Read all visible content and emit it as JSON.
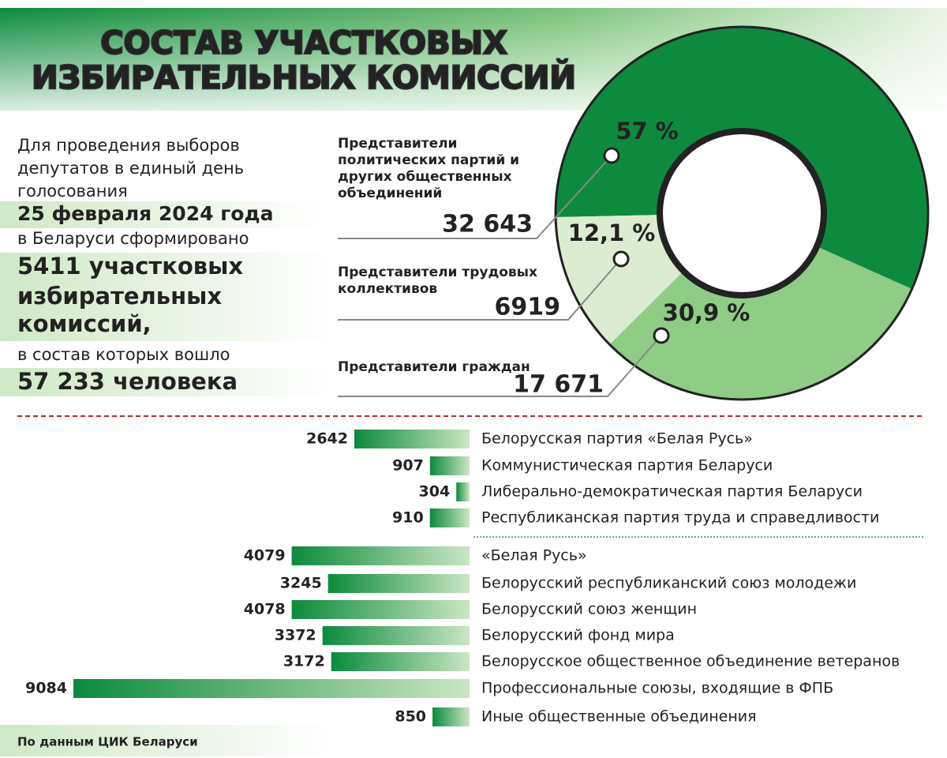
{
  "header": {
    "title_lines": [
      "СОСТАВ УЧАСТКОВЫХ",
      "ИЗБИРАТЕЛЬНЫХ КОМИССИЙ"
    ]
  },
  "intro": {
    "lines": [
      "Для проведения выборов",
      "депутатов в единый день",
      "голосования",
      "25 февраля 2024 года",
      "в Беларуси сформировано",
      "5411 участковых",
      "избирательных",
      "комиссий,",
      "в состав которых вошло",
      "57 233 человека"
    ]
  },
  "chart_data": [
    {
      "type": "pie",
      "categories": [
        "Представители политических партий и других общественных объединений",
        "Представители трудовых коллективов",
        "Представители граждан"
      ],
      "values": [
        57,
        12.1,
        30.9
      ],
      "value_labels": [
        "57 %",
        "12,1 %",
        "30,9 %"
      ],
      "counts": [
        32643,
        6919,
        17671
      ],
      "count_labels": [
        "32 643",
        "6919",
        "17 671"
      ],
      "colors": [
        "#0e8a3f",
        "#dcecd3",
        "#8fcc86"
      ]
    },
    {
      "type": "bar",
      "categories": [
        "Белорусская партия «Белая Русь»",
        "Коммунистическая партия Беларуси",
        "Либерально-демократическая партия Беларуси",
        "Республиканская партия труда и справедливости"
      ],
      "values": [
        2642,
        907,
        304,
        910
      ],
      "color": "#0b8a3c"
    },
    {
      "type": "bar",
      "categories": [
        "«Белая Русь»",
        "Белорусский республиканский союз молодежи",
        "Белорусский союз женщин",
        "Белорусский фонд мира",
        "Белорусское общественное объединение ветеранов",
        "Профессиональные союзы, входящие в ФПБ",
        "Иные общественные объединения"
      ],
      "values": [
        4079,
        3245,
        4078,
        3372,
        3172,
        9084,
        850
      ],
      "color": "#0b8a3c"
    }
  ],
  "source": "По данным ЦИК Беларуси"
}
